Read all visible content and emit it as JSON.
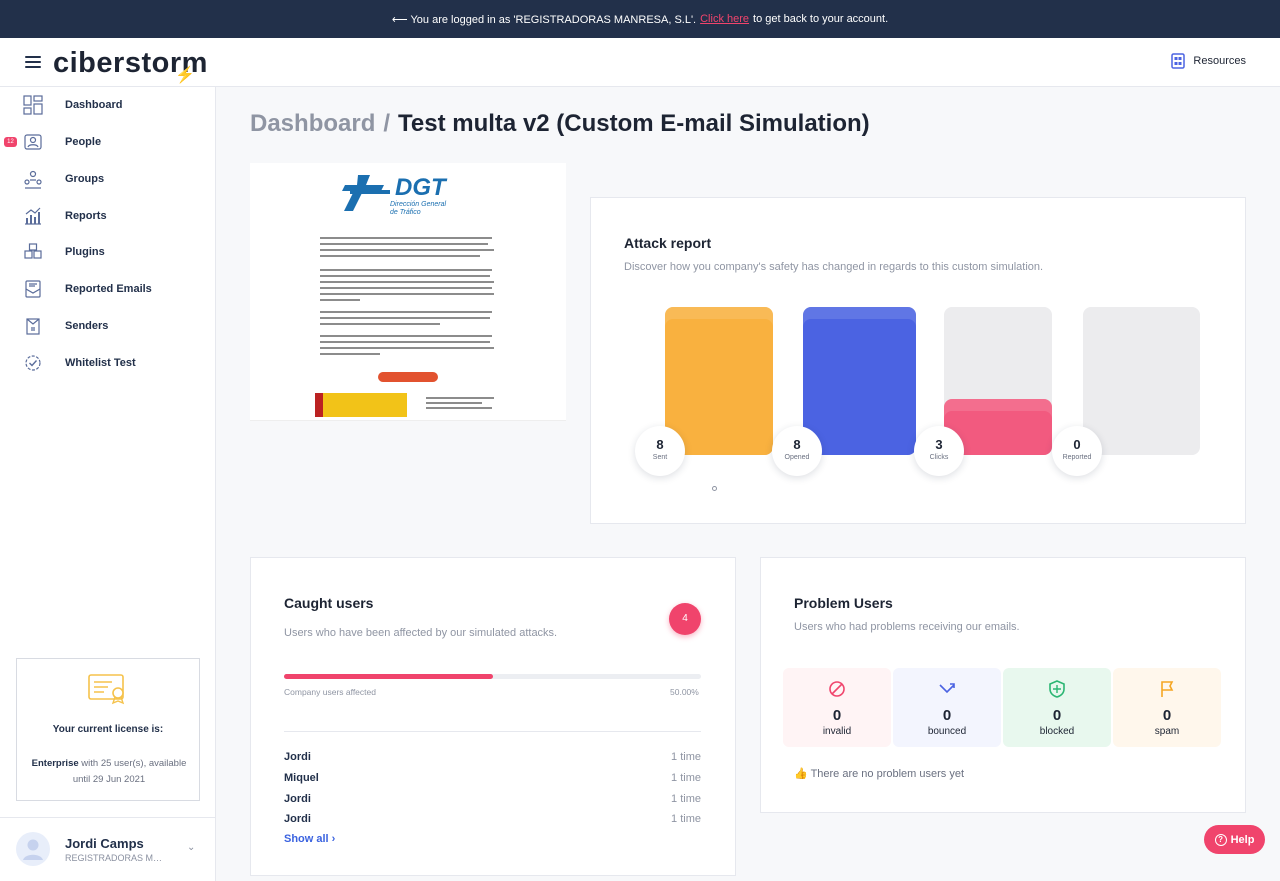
{
  "banner": {
    "prefix": "⟵ You are logged in as 'REGISTRADORAS MANRESA, S.L'.",
    "link": "Click here",
    "suffix": "to get back to your account."
  },
  "header": {
    "logo": "ciberstorm",
    "resources": "Resources"
  },
  "sidebar": {
    "items": [
      {
        "label": "Dashboard",
        "icon": "dashboard-icon"
      },
      {
        "label": "People",
        "icon": "people-icon",
        "badge": "12"
      },
      {
        "label": "Groups",
        "icon": "groups-icon"
      },
      {
        "label": "Reports",
        "icon": "reports-icon"
      },
      {
        "label": "Plugins",
        "icon": "plugins-icon"
      },
      {
        "label": "Reported Emails",
        "icon": "reported-emails-icon"
      },
      {
        "label": "Senders",
        "icon": "senders-icon"
      },
      {
        "label": "Whitelist Test",
        "icon": "whitelist-icon"
      }
    ],
    "license": {
      "title": "Your current license is:",
      "plan": "Enterprise",
      "details": "with 25 user(s), available until 29 Jun 2021"
    },
    "user": {
      "name": "Jordi Camps",
      "org": "REGISTRADORAS MANRESA, S.L"
    }
  },
  "breadcrumb": {
    "root": "Dashboard",
    "separator": "/",
    "current": "Test multa v2 (Custom E-mail Simulation)"
  },
  "preview": {
    "brand": "DGT",
    "brand_sub1": "Dirección General",
    "brand_sub2": "de Tráfico"
  },
  "attack_report": {
    "title": "Attack report",
    "subtitle": "Discover how you company's safety has changed in regards to this custom simulation.",
    "stats": [
      {
        "value": "8",
        "label": "Sent",
        "fraction": 1.0,
        "color": "#f9b13f"
      },
      {
        "value": "8",
        "label": "Opened",
        "fraction": 1.0,
        "color": "#4b63e2"
      },
      {
        "value": "3",
        "label": "Clicks",
        "fraction": 0.375,
        "color": "#f25a7f"
      },
      {
        "value": "0",
        "label": "Reported",
        "fraction": 0.0,
        "color": "#e9e9ec"
      }
    ]
  },
  "caught_users": {
    "title": "Caught users",
    "subtitle": "Users who have been affected by our simulated attacks.",
    "count": "4",
    "progress_label": "Company users affected",
    "progress_value": "50.00%",
    "progress_fraction": 0.5,
    "rows": [
      {
        "name": "Jordi",
        "times": "1 time"
      },
      {
        "name": "Miquel",
        "times": "1 time"
      },
      {
        "name": "Jordi",
        "times": "1 time"
      },
      {
        "name": "Jordi",
        "times": "1 time"
      }
    ],
    "show_all": "Show all ›"
  },
  "problem_users": {
    "title": "Problem Users",
    "subtitle": "Users who had problems receiving our emails.",
    "cells": [
      {
        "value": "0",
        "label": "invalid",
        "bg": "#fff4f5",
        "color": "#f0446c",
        "icon": "ban-icon"
      },
      {
        "value": "0",
        "label": "bounced",
        "bg": "#f3f5fe",
        "color": "#4b63e2",
        "icon": "bounce-arrow-icon"
      },
      {
        "value": "0",
        "label": "blocked",
        "bg": "#e8f8ee",
        "color": "#2bb673",
        "icon": "shield-icon"
      },
      {
        "value": "0",
        "label": "spam",
        "bg": "#fff7ec",
        "color": "#f5a623",
        "icon": "flag-icon"
      }
    ],
    "empty": "There are no problem users yet"
  },
  "help": {
    "label": "Help"
  }
}
